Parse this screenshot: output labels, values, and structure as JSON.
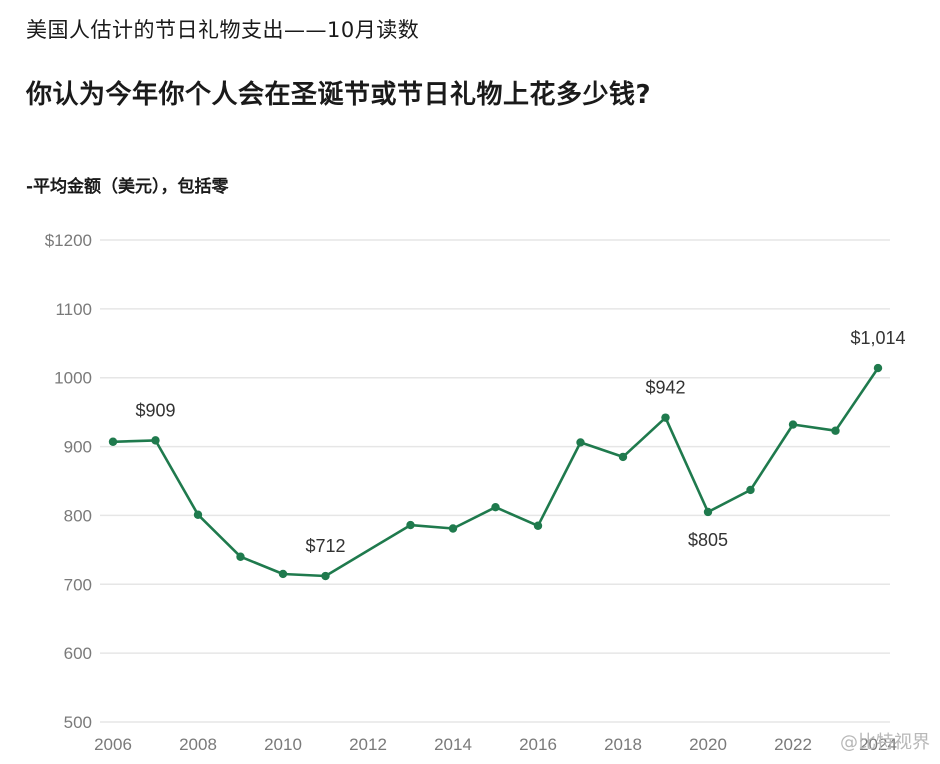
{
  "header": {
    "kicker": "美国人估计的节日礼物支出——10月读数",
    "title": "你认为今年你个人会在圣诞节或节日礼物上花多少钱?",
    "subtitle": "-平均金额（美元），包括零"
  },
  "watermark": "@比特视界",
  "colors": {
    "line": "#1f7a4d",
    "grid": "#e6e6e6",
    "text": "#1a1a1a",
    "axis_text": "#7a7a7a"
  },
  "chart_data": {
    "type": "line",
    "title": "",
    "xlabel": "",
    "ylabel": "",
    "xlim": [
      2006,
      2024
    ],
    "ylim": [
      500,
      1200
    ],
    "y_ticks": [
      500,
      600,
      700,
      800,
      900,
      1000,
      1100,
      1200
    ],
    "y_tick_labels": [
      "500",
      "600",
      "700",
      "800",
      "900",
      "1000",
      "1100",
      "$1200"
    ],
    "x_ticks": [
      2006,
      2008,
      2010,
      2012,
      2014,
      2016,
      2018,
      2020,
      2022,
      2024
    ],
    "x_tick_labels": [
      "2006",
      "2008",
      "2010",
      "2012",
      "2014",
      "2016",
      "2018",
      "2020",
      "2022",
      "2024"
    ],
    "grid": true,
    "legend": "none",
    "series": [
      {
        "x": [
          2006,
          2007,
          2008,
          2009,
          2010,
          2011,
          2013,
          2014,
          2015,
          2016,
          2017,
          2018,
          2019,
          2020,
          2021,
          2022,
          2023,
          2024
        ],
        "values": [
          907,
          909,
          801,
          740,
          715,
          712,
          786,
          781,
          812,
          785,
          906,
          885,
          942,
          805,
          837,
          932,
          923,
          1014
        ]
      }
    ],
    "annotations": [
      {
        "x": 2007,
        "y": 909,
        "text": "$909",
        "position": "above"
      },
      {
        "x": 2011,
        "y": 712,
        "text": "$712",
        "position": "above"
      },
      {
        "x": 2019,
        "y": 942,
        "text": "$942",
        "position": "above"
      },
      {
        "x": 2020,
        "y": 805,
        "text": "$805",
        "position": "below"
      },
      {
        "x": 2024,
        "y": 1014,
        "text": "$1,014",
        "position": "above"
      }
    ]
  }
}
